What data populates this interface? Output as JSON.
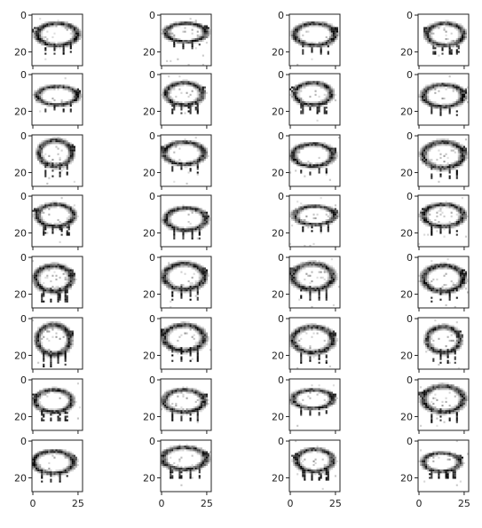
{
  "chart_data": {
    "type": "image-grid",
    "rows": 8,
    "cols": 4,
    "image_size": 28,
    "cmap": "gray_r",
    "x_ticks": [
      "0",
      "25"
    ],
    "y_ticks": [
      "0",
      "20"
    ],
    "x_ticks_shown_on": "bottom row only",
    "subject": "generated sheep doodles",
    "images": [
      {
        "blob": [
          14,
          11,
          11,
          6
        ]
      },
      {
        "blob": [
          14,
          10,
          11,
          5
        ]
      },
      {
        "blob": [
          14,
          11,
          11,
          6
        ]
      },
      {
        "blob": [
          15,
          11,
          10,
          6
        ]
      },
      {
        "blob": [
          14,
          12,
          11,
          5
        ]
      },
      {
        "blob": [
          13,
          11,
          10,
          6
        ]
      },
      {
        "blob": [
          13,
          11,
          10,
          6
        ]
      },
      {
        "blob": [
          14,
          12,
          11,
          6
        ]
      },
      {
        "blob": [
          13,
          10,
          9,
          7
        ]
      },
      {
        "blob": [
          13,
          10,
          11,
          6
        ]
      },
      {
        "blob": [
          13,
          11,
          11,
          6
        ]
      },
      {
        "blob": [
          14,
          11,
          11,
          7
        ]
      },
      {
        "blob": [
          13,
          11,
          10,
          6
        ]
      },
      {
        "blob": [
          14,
          13,
          11,
          6
        ]
      },
      {
        "blob": [
          14,
          11,
          11,
          5
        ]
      },
      {
        "blob": [
          14,
          11,
          11,
          6
        ]
      },
      {
        "blob": [
          12,
          12,
          10,
          7
        ]
      },
      {
        "blob": [
          13,
          11,
          11,
          7
        ]
      },
      {
        "blob": [
          13,
          11,
          11,
          7
        ]
      },
      {
        "blob": [
          14,
          12,
          11,
          7
        ]
      },
      {
        "blob": [
          12,
          12,
          9,
          8
        ]
      },
      {
        "blob": [
          13,
          11,
          11,
          7
        ]
      },
      {
        "blob": [
          13,
          12,
          11,
          7
        ]
      },
      {
        "blob": [
          14,
          12,
          9,
          7
        ]
      },
      {
        "blob": [
          12,
          12,
          10,
          6
        ]
      },
      {
        "blob": [
          13,
          12,
          11,
          6
        ]
      },
      {
        "blob": [
          13,
          11,
          11,
          5
        ]
      },
      {
        "blob": [
          14,
          11,
          11,
          7
        ]
      },
      {
        "blob": [
          12,
          12,
          11,
          6
        ]
      },
      {
        "blob": [
          13,
          10,
          12,
          6
        ]
      },
      {
        "blob": [
          14,
          11,
          10,
          6
        ]
      },
      {
        "blob": [
          13,
          12,
          10,
          5
        ]
      }
    ]
  }
}
